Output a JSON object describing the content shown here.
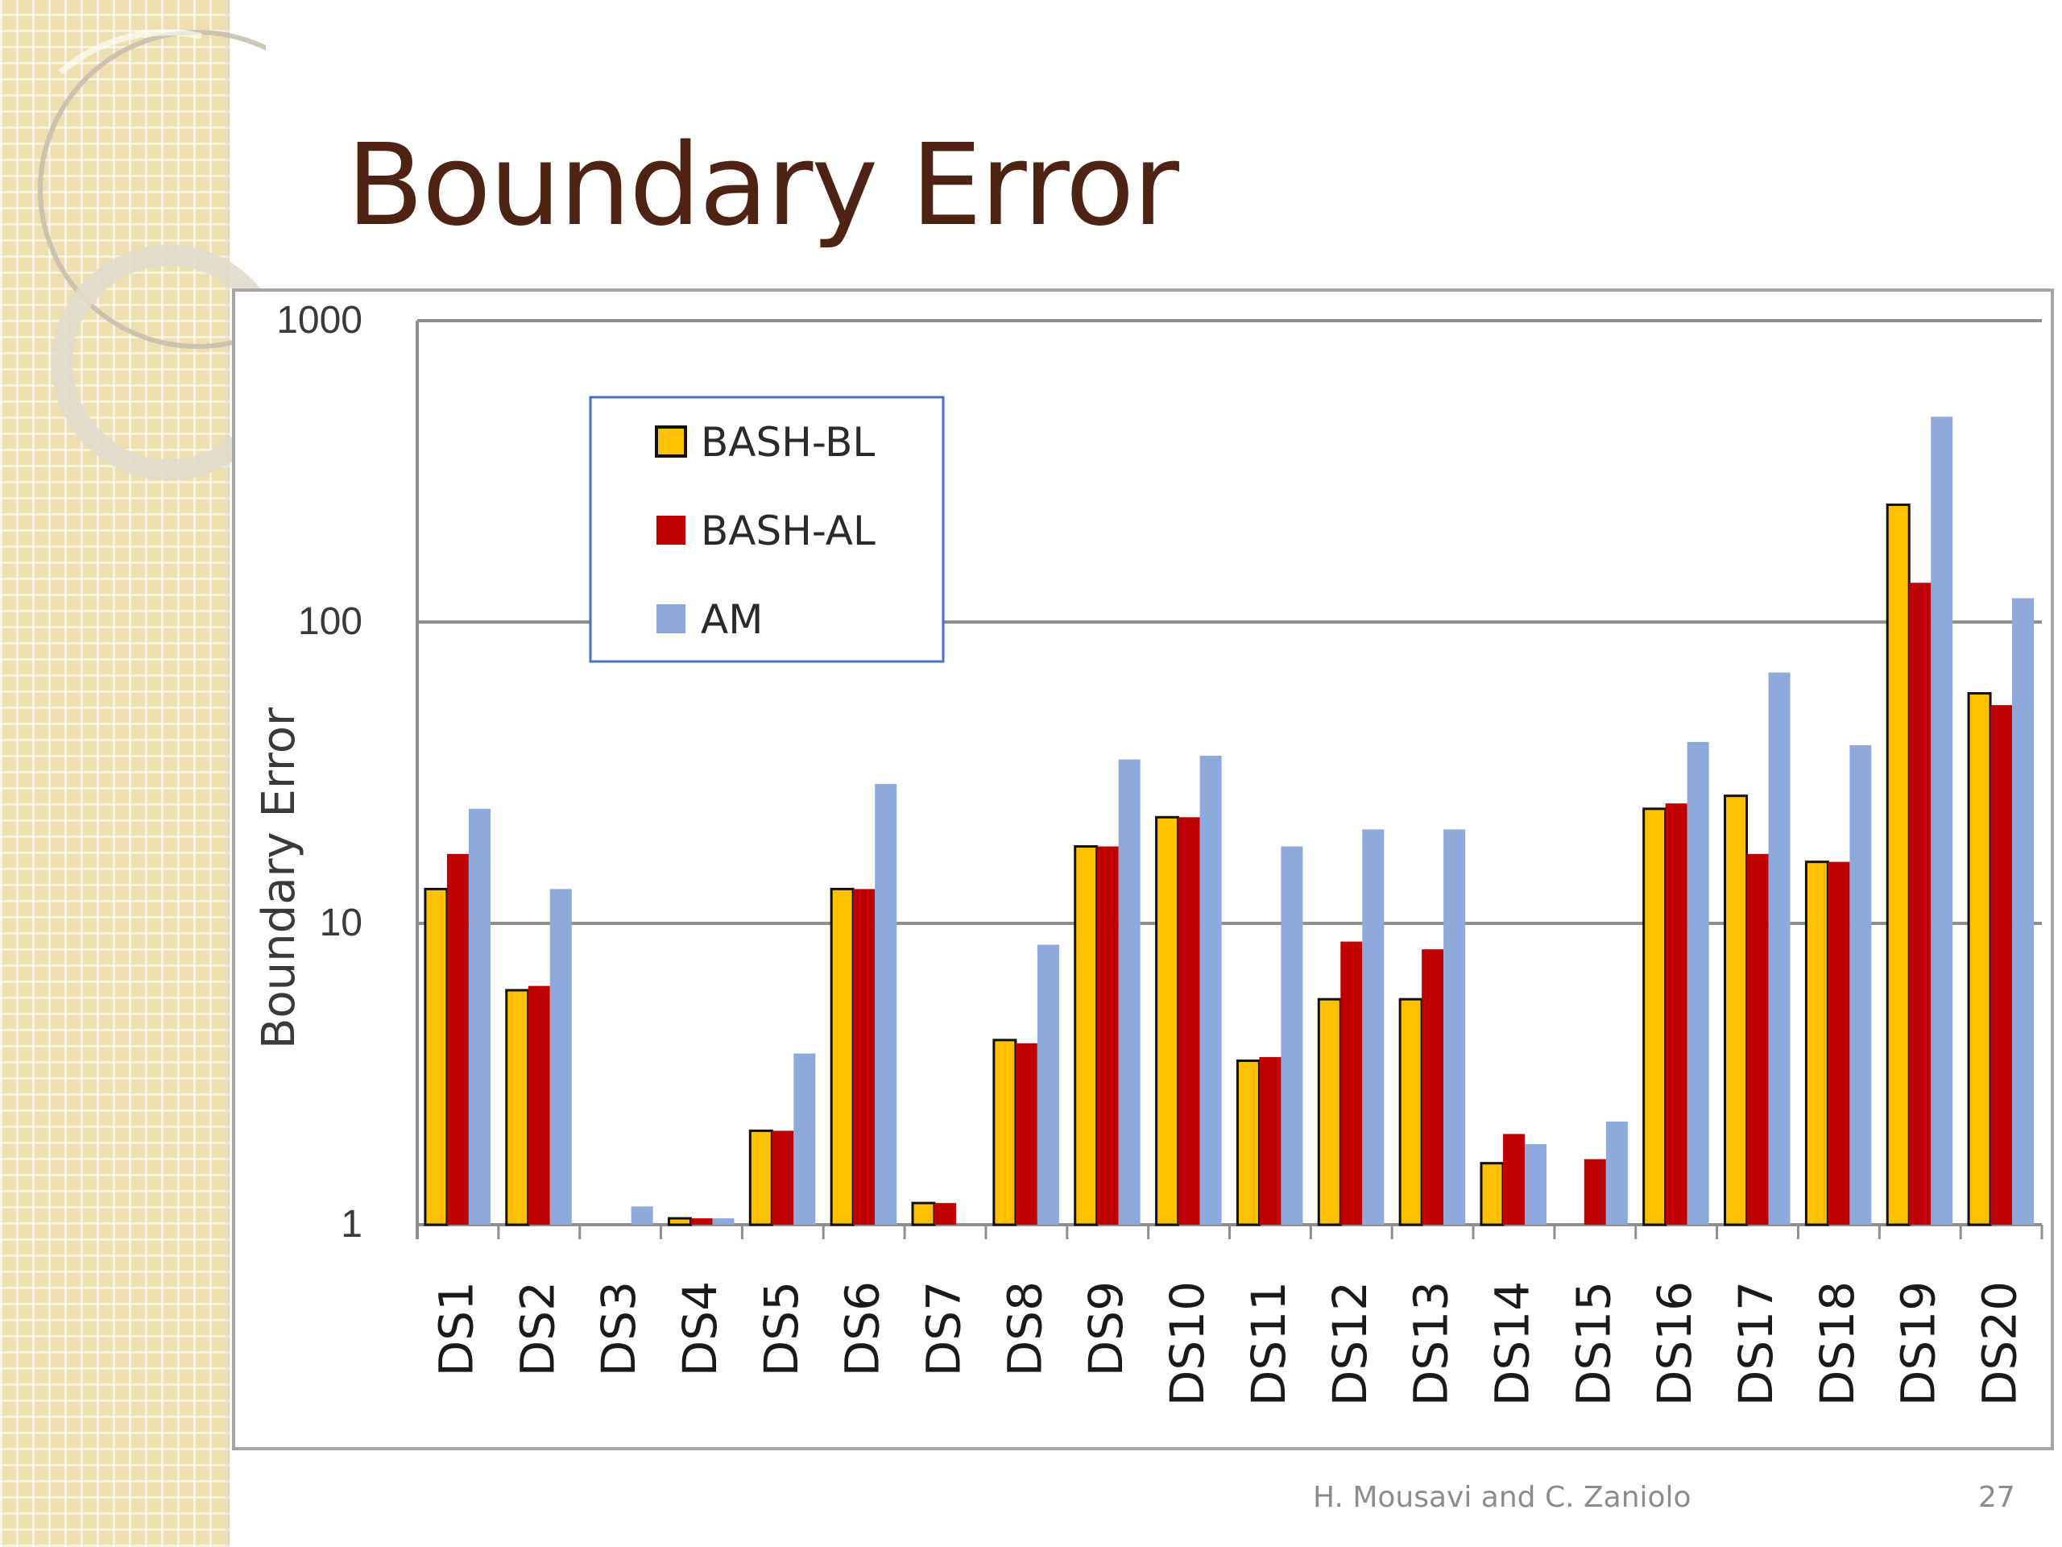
{
  "slide": {
    "title": "Boundary Error",
    "footer": "H. Mousavi and C. Zaniolo",
    "page_number": "27"
  },
  "colors": {
    "title": "#4e2314",
    "sidebar": "#efdfb0",
    "bash_bl": "#ffc000",
    "bash_al": "#c00000",
    "am": "#8eaadb"
  },
  "chart_data": {
    "type": "bar",
    "ylabel": "Boundary Error",
    "yscale": "log",
    "ylim": [
      1,
      1000
    ],
    "yticks": [
      "1",
      "10",
      "100",
      "1000"
    ],
    "grid": true,
    "legend_position": "top-left",
    "categories": [
      "DS1",
      "DS2",
      "DS3",
      "DS4",
      "DS5",
      "DS6",
      "DS7",
      "DS8",
      "DS9",
      "DS10",
      "DS11",
      "DS12",
      "DS13",
      "DS14",
      "DS15",
      "DS16",
      "DS17",
      "DS18",
      "DS19",
      "DS20"
    ],
    "series": [
      {
        "name": "BASH-BL",
        "color": "#ffc000",
        "outlined": true,
        "values": [
          13,
          6,
          null,
          1.05,
          2.05,
          13,
          1.18,
          4.1,
          18,
          22.5,
          3.5,
          5.6,
          5.6,
          1.6,
          null,
          24,
          26.5,
          16,
          245,
          58
        ]
      },
      {
        "name": "BASH-AL",
        "color": "#c00000",
        "outlined": false,
        "values": [
          17,
          6.2,
          null,
          1.05,
          2.05,
          13,
          1.18,
          4.0,
          18,
          22.5,
          3.6,
          8.7,
          8.2,
          2.0,
          1.65,
          25,
          17,
          16,
          135,
          53
        ]
      },
      {
        "name": "AM",
        "color": "#8eaadb",
        "outlined": false,
        "values": [
          24,
          13,
          1.15,
          1.05,
          3.7,
          29,
          null,
          8.5,
          35,
          36,
          18,
          20.5,
          20.5,
          1.85,
          2.2,
          40,
          68,
          39,
          480,
          120
        ]
      }
    ]
  }
}
